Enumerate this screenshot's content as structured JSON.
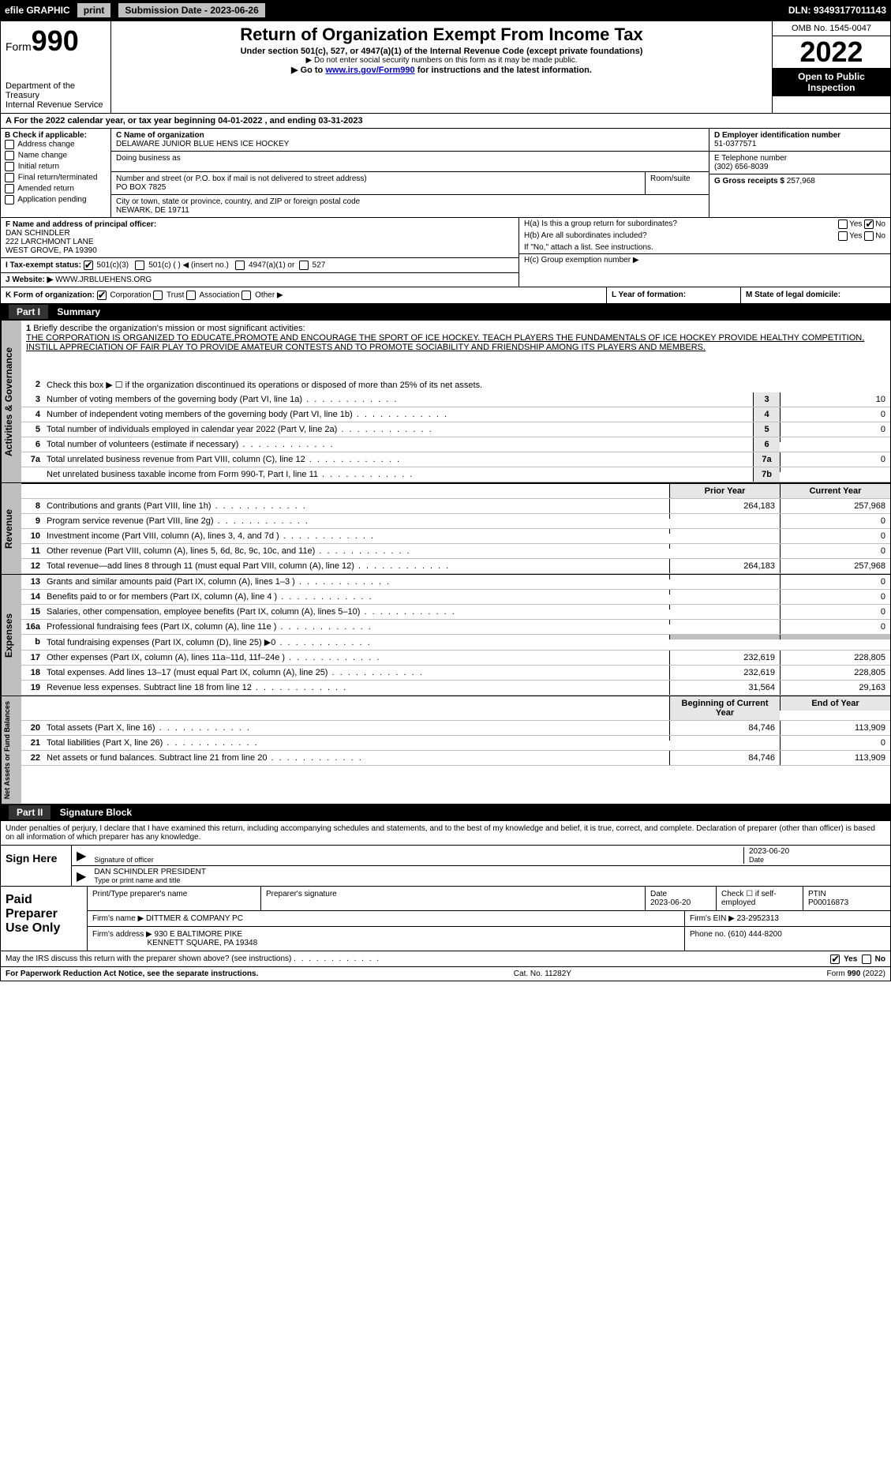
{
  "topbar": {
    "efile": "efile GRAPHIC",
    "print": "print",
    "subdate_label": "Submission Date - 2023-06-26",
    "dln": "DLN: 93493177011143"
  },
  "header": {
    "form_label": "Form",
    "form_no": "990",
    "title": "Return of Organization Exempt From Income Tax",
    "sub": "Under section 501(c), 527, or 4947(a)(1) of the Internal Revenue Code (except private foundations)",
    "note1": "▶ Do not enter social security numbers on this form as it may be made public.",
    "note2_pre": "▶ Go to ",
    "note2_link": "www.irs.gov/Form990",
    "note2_post": " for instructions and the latest information.",
    "dept": "Department of the Treasury",
    "irs": "Internal Revenue Service",
    "omb": "OMB No. 1545-0047",
    "year": "2022",
    "open": "Open to Public Inspection"
  },
  "rowA": "A For the 2022 calendar year, or tax year beginning 04-01-2022   , and ending 03-31-2023",
  "colB": {
    "hdr": "B Check if applicable:",
    "i1": "Address change",
    "i2": "Name change",
    "i3": "Initial return",
    "i4": "Final return/terminated",
    "i5": "Amended return",
    "i6": "Application pending"
  },
  "colC": {
    "c_label": "C Name of organization",
    "name": "DELAWARE JUNIOR BLUE HENS ICE HOCKEY",
    "dba_label": "Doing business as",
    "addr_label": "Number and street (or P.O. box if mail is not delivered to street address)",
    "room_label": "Room/suite",
    "addr": "PO BOX 7825",
    "city_label": "City or town, state or province, country, and ZIP or foreign postal code",
    "city": "NEWARK, DE  19711"
  },
  "colD": {
    "d_label": "D Employer identification number",
    "ein": "51-0377571",
    "e_label": "E Telephone number",
    "phone": "(302) 656-8039",
    "g_label": "G Gross receipts $",
    "gross": "257,968"
  },
  "colF": {
    "f_label": "F Name and address of principal officer:",
    "name": "DAN SCHINDLER",
    "addr1": "222 LARCHMONT LANE",
    "addr2": "WEST GROVE, PA  19390",
    "i_label": "I  Tax-exempt status:",
    "j_label": "J  Website: ▶",
    "website": "WWW.JRBLUEHENS.ORG"
  },
  "colH": {
    "ha": "H(a)  Is this a group return for subordinates?",
    "hb": "H(b)  Are all subordinates included?",
    "hb_note": "If \"No,\" attach a list. See instructions.",
    "hc": "H(c)  Group exemption number ▶",
    "yes": "Yes",
    "no": "No"
  },
  "rowK": {
    "k": "K Form of organization:",
    "corp": "Corporation",
    "trust": "Trust",
    "assoc": "Association",
    "other": "Other ▶",
    "l": "L Year of formation:",
    "m": "M State of legal domicile:"
  },
  "part1": {
    "hdr": "Part I",
    "title": "Summary",
    "l1_label": "Briefly describe the organization's mission or most significant activities:",
    "l1_text": "THE CORPORATION IS ORGANIZED TO EDUCATE,PROMOTE AND ENCOURAGE THE SPORT OF ICE HOCKEY. TEACH PLAYERS THE FUNDAMENTALS OF ICE HOCKEY PROVIDE HEALTHY COMPETITION, INSTILL APPRECIATION OF FAIR PLAY TO PROVIDE AMATEUR CONTESTS AND TO PROMOTE SOCIABILITY AND FRIENDSHIP AMONG ITS PLAYERS AND MEMBERS.",
    "l2": "Check this box ▶ ☐  if the organization discontinued its operations or disposed of more than 25% of its net assets.",
    "lines": [
      {
        "n": "3",
        "t": "Number of voting members of the governing body (Part VI, line 1a)",
        "box": "3",
        "v": "10"
      },
      {
        "n": "4",
        "t": "Number of independent voting members of the governing body (Part VI, line 1b)",
        "box": "4",
        "v": "0"
      },
      {
        "n": "5",
        "t": "Total number of individuals employed in calendar year 2022 (Part V, line 2a)",
        "box": "5",
        "v": "0"
      },
      {
        "n": "6",
        "t": "Total number of volunteers (estimate if necessary)",
        "box": "6",
        "v": ""
      },
      {
        "n": "7a",
        "t": "Total unrelated business revenue from Part VIII, column (C), line 12",
        "box": "7a",
        "v": "0"
      },
      {
        "n": "",
        "t": "Net unrelated business taxable income from Form 990-T, Part I, line 11",
        "box": "7b",
        "v": ""
      }
    ],
    "col_prior": "Prior Year",
    "col_curr": "Current Year",
    "rev": [
      {
        "n": "8",
        "t": "Contributions and grants (Part VIII, line 1h)",
        "p": "264,183",
        "c": "257,968"
      },
      {
        "n": "9",
        "t": "Program service revenue (Part VIII, line 2g)",
        "p": "",
        "c": "0"
      },
      {
        "n": "10",
        "t": "Investment income (Part VIII, column (A), lines 3, 4, and 7d )",
        "p": "",
        "c": "0"
      },
      {
        "n": "11",
        "t": "Other revenue (Part VIII, column (A), lines 5, 6d, 8c, 9c, 10c, and 11e)",
        "p": "",
        "c": "0"
      },
      {
        "n": "12",
        "t": "Total revenue—add lines 8 through 11 (must equal Part VIII, column (A), line 12)",
        "p": "264,183",
        "c": "257,968"
      }
    ],
    "exp": [
      {
        "n": "13",
        "t": "Grants and similar amounts paid (Part IX, column (A), lines 1–3 )",
        "p": "",
        "c": "0"
      },
      {
        "n": "14",
        "t": "Benefits paid to or for members (Part IX, column (A), line 4 )",
        "p": "",
        "c": "0"
      },
      {
        "n": "15",
        "t": "Salaries, other compensation, employee benefits (Part IX, column (A), lines 5–10)",
        "p": "",
        "c": "0"
      },
      {
        "n": "16a",
        "t": "Professional fundraising fees (Part IX, column (A), line 11e )",
        "p": "",
        "c": "0"
      },
      {
        "n": "b",
        "t": "Total fundraising expenses (Part IX, column (D), line 25) ▶0",
        "p": "__shade__",
        "c": "__shade__"
      },
      {
        "n": "17",
        "t": "Other expenses (Part IX, column (A), lines 11a–11d, 11f–24e )",
        "p": "232,619",
        "c": "228,805"
      },
      {
        "n": "18",
        "t": "Total expenses. Add lines 13–17 (must equal Part IX, column (A), line 25)",
        "p": "232,619",
        "c": "228,805"
      },
      {
        "n": "19",
        "t": "Revenue less expenses. Subtract line 18 from line 12",
        "p": "31,564",
        "c": "29,163"
      }
    ],
    "col_beg": "Beginning of Current Year",
    "col_end": "End of Year",
    "net": [
      {
        "n": "20",
        "t": "Total assets (Part X, line 16)",
        "p": "84,746",
        "c": "113,909"
      },
      {
        "n": "21",
        "t": "Total liabilities (Part X, line 26)",
        "p": "",
        "c": "0"
      },
      {
        "n": "22",
        "t": "Net assets or fund balances. Subtract line 21 from line 20",
        "p": "84,746",
        "c": "113,909"
      }
    ]
  },
  "sidelabels": {
    "ag": "Activities & Governance",
    "rev": "Revenue",
    "exp": "Expenses",
    "net": "Net Assets or Fund Balances"
  },
  "part2": {
    "hdr": "Part II",
    "title": "Signature Block",
    "intro": "Under penalties of perjury, I declare that I have examined this return, including accompanying schedules and statements, and to the best of my knowledge and belief, it is true, correct, and complete. Declaration of preparer (other than officer) is based on all information of which preparer has any knowledge.",
    "signhere": "Sign Here",
    "sig_of_officer": "Signature of officer",
    "date": "Date",
    "sigdate": "2023-06-20",
    "officer": "DAN SCHINDLER  PRESIDENT",
    "type_or_print": "Type or print name and title",
    "paid": "Paid Preparer Use Only",
    "pp_name_label": "Print/Type preparer's name",
    "pp_sig_label": "Preparer's signature",
    "pp_date_label": "Date",
    "pp_date": "2023-06-20",
    "pp_self": "Check ☐ if self-employed",
    "ptin_label": "PTIN",
    "ptin": "P00016873",
    "firm_label": "Firm's name    ▶",
    "firm": "DITTMER & COMPANY PC",
    "firm_ein_label": "Firm's EIN ▶",
    "firm_ein": "23-2952313",
    "firm_addr_label": "Firm's address ▶",
    "firm_addr1": "930 E BALTIMORE PIKE",
    "firm_addr2": "KENNETT SQUARE, PA  19348",
    "phone_label": "Phone no.",
    "phone": "(610) 444-8200",
    "may_irs": "May the IRS discuss this return with the preparer shown above? (see instructions)"
  },
  "footer": {
    "left": "For Paperwork Reduction Act Notice, see the separate instructions.",
    "mid": "Cat. No. 11282Y",
    "right": "Form 990 (2022)"
  },
  "tax_status": {
    "o1": "501(c)(3)",
    "o2": "501(c) (    ) ◀ (insert no.)",
    "o3": "4947(a)(1) or",
    "o4": "527"
  }
}
